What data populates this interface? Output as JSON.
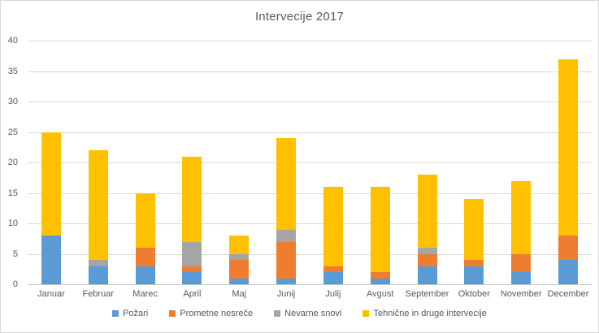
{
  "chart_data": {
    "type": "bar",
    "stacked": true,
    "title": "Intervecije 2017",
    "categories": [
      "Januar",
      "Februar",
      "Marec",
      "April",
      "Maj",
      "Junij",
      "Julij",
      "Avgust",
      "September",
      "Oktober",
      "November",
      "December"
    ],
    "series": [
      {
        "name": "Požari",
        "color": "#5B9BD5",
        "values": [
          8,
          3,
          3,
          2,
          1,
          1,
          2,
          1,
          3,
          3,
          2,
          4
        ]
      },
      {
        "name": "Prometne nesreče",
        "color": "#ED7D31",
        "values": [
          0,
          0,
          3,
          1,
          3,
          6,
          1,
          1,
          2,
          1,
          3,
          4
        ]
      },
      {
        "name": "Nevarne snovi",
        "color": "#A5A5A5",
        "values": [
          0,
          1,
          0,
          4,
          1,
          2,
          0,
          0,
          1,
          0,
          0,
          0
        ]
      },
      {
        "name": "Tehnične in druge intervecije",
        "color": "#FFC000",
        "values": [
          17,
          18,
          9,
          14,
          3,
          15,
          13,
          14,
          12,
          10,
          12,
          29
        ]
      }
    ],
    "stack_totals": [
      25,
      22,
      15,
      21,
      8,
      24,
      16,
      16,
      18,
      14,
      17,
      37
    ],
    "xlabel": "",
    "ylabel": "",
    "ylim": [
      0,
      40
    ],
    "yticks": [
      0,
      5,
      10,
      15,
      20,
      25,
      30,
      35,
      40
    ],
    "grid": true,
    "legend_position": "bottom"
  },
  "style": {
    "gridline_color": "#D9D9D9",
    "axis_text_color": "#595959",
    "title_color": "#595959",
    "background": "#FFFFFF"
  }
}
